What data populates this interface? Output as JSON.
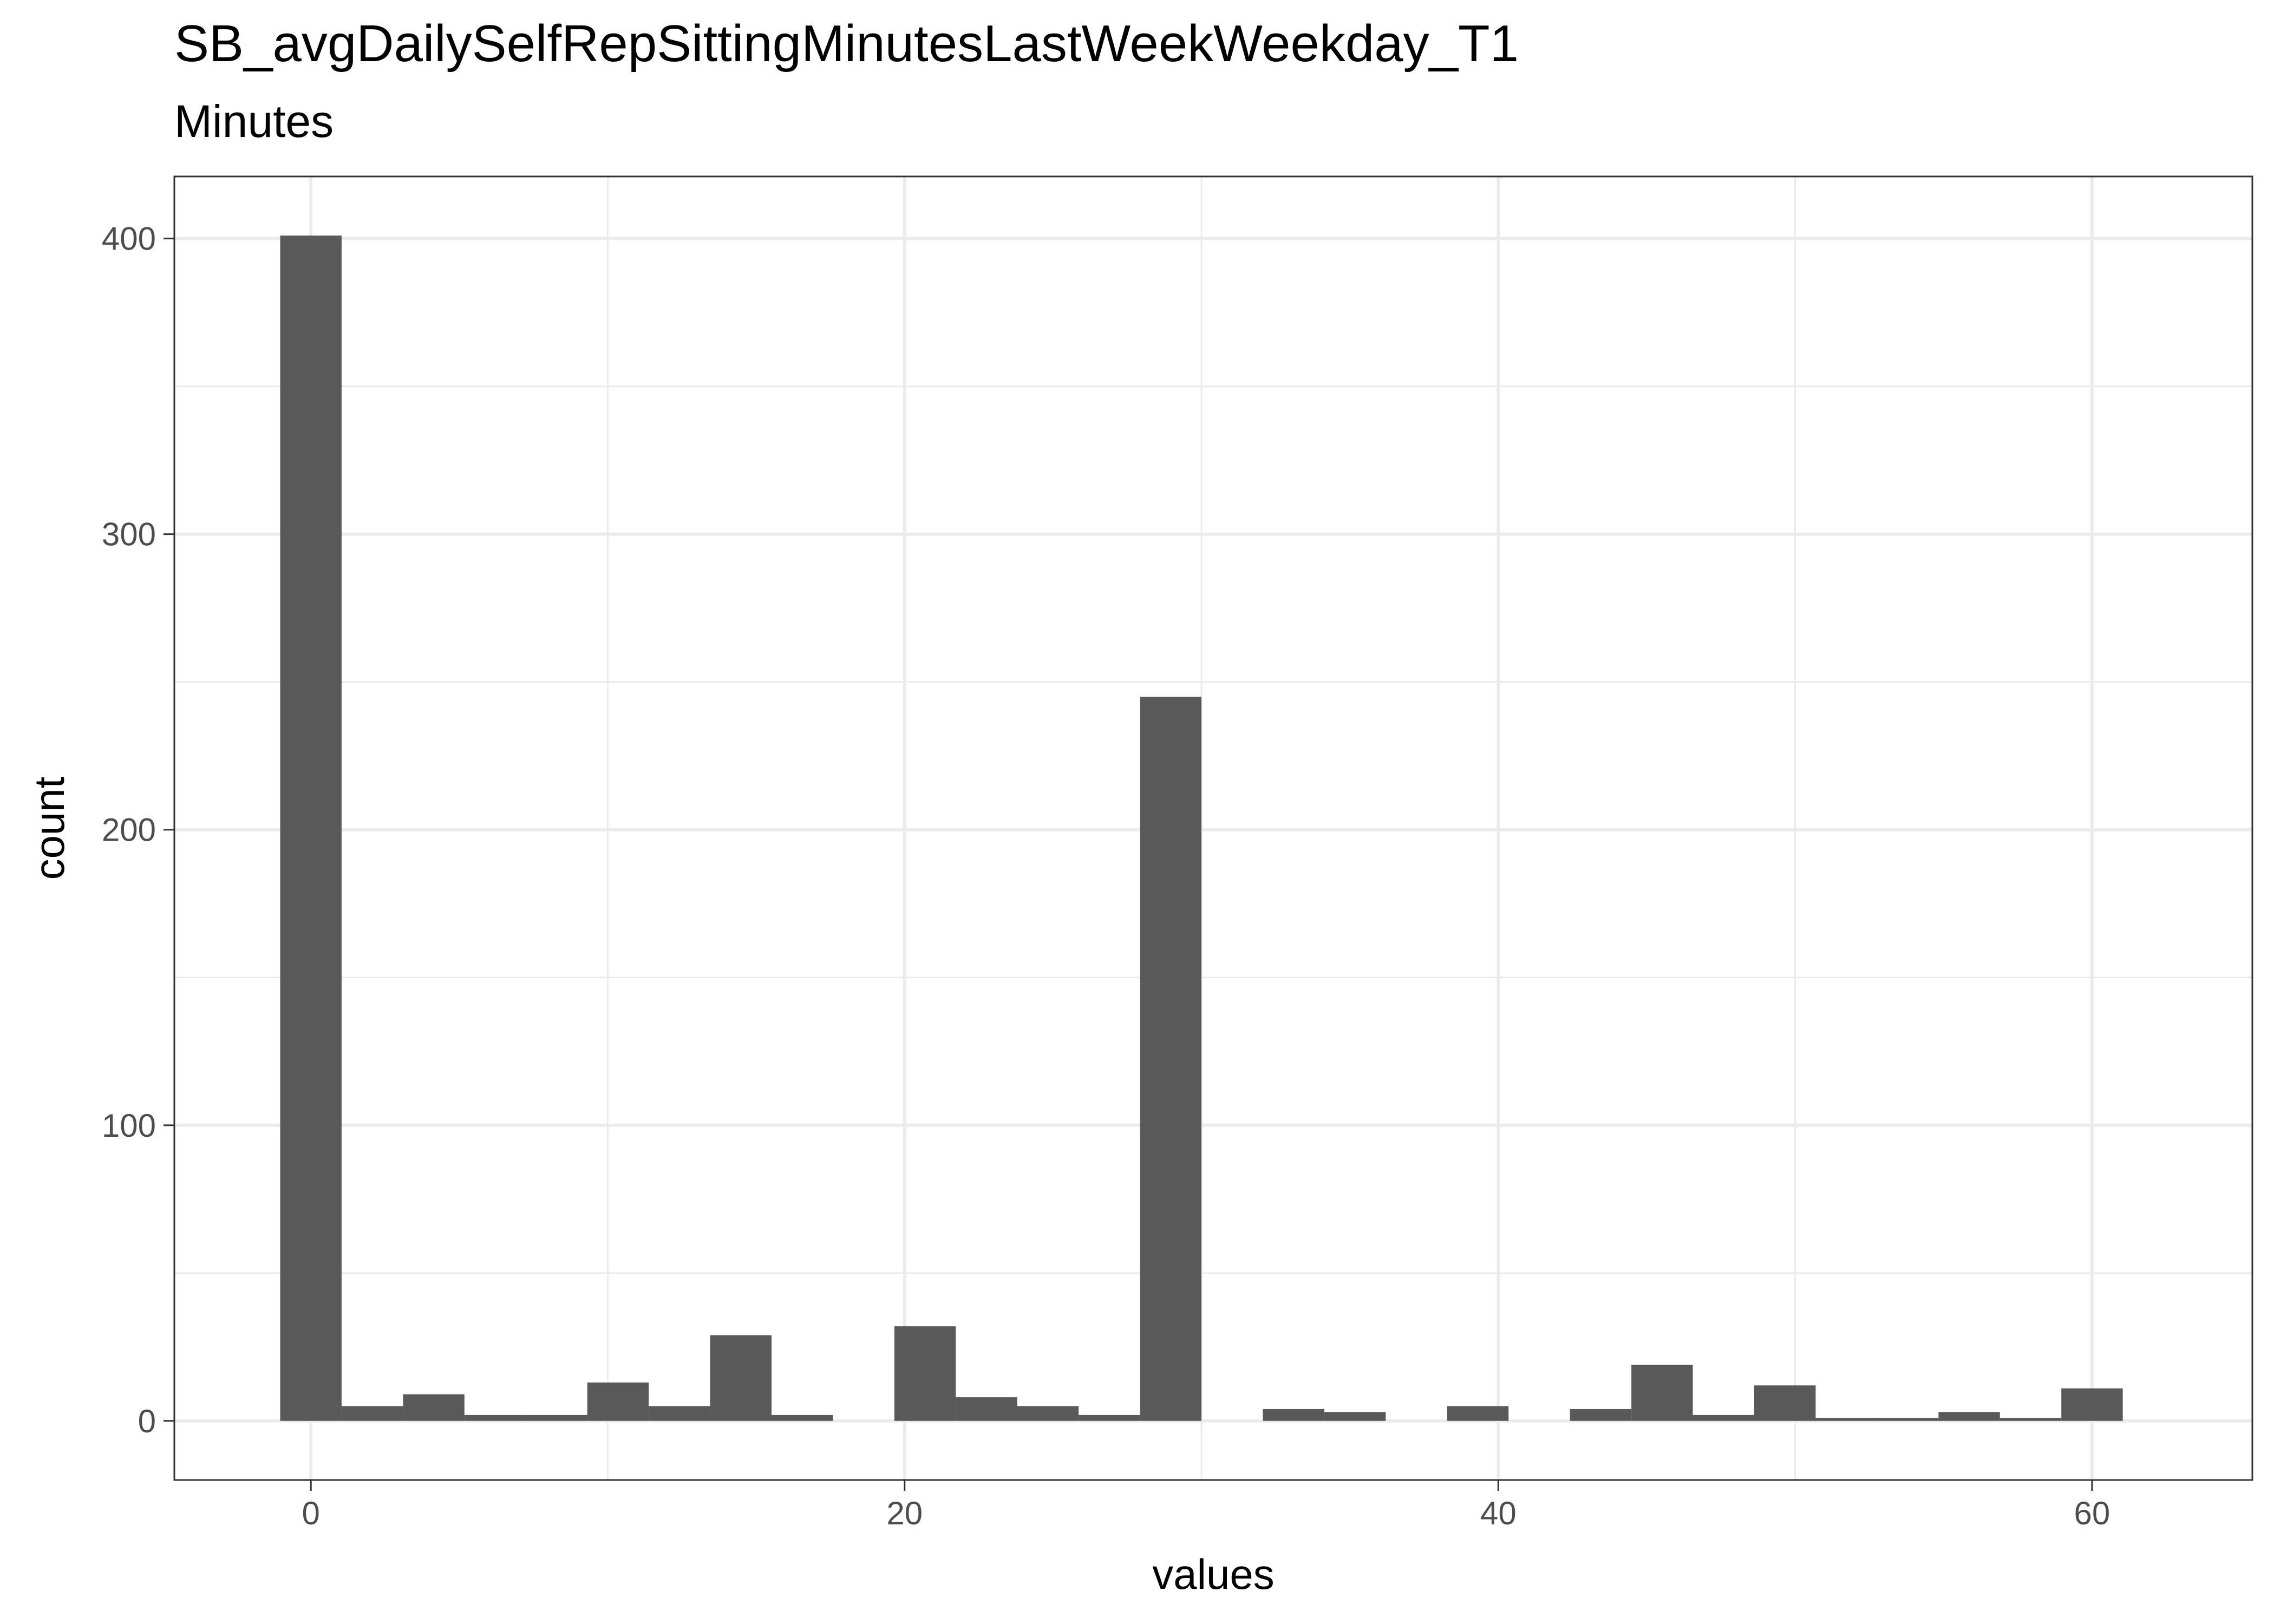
{
  "chart_data": {
    "type": "bar",
    "title": "SB_avgDailySelfRepSittingMinutesLastWeekWeekday_T1",
    "subtitle": "Minutes",
    "xlabel": "values",
    "ylabel": "count",
    "xlim": [
      -4.6,
      65.4
    ],
    "ylim": [
      -20,
      421
    ],
    "x_ticks": [
      0,
      20,
      40,
      60
    ],
    "y_ticks": [
      0,
      100,
      200,
      300,
      400
    ],
    "bin_width": 2.069,
    "bin_centers": [
      0,
      2.069,
      4.138,
      6.207,
      8.276,
      10.345,
      12.414,
      14.483,
      16.552,
      18.621,
      20.69,
      22.759,
      24.828,
      26.897,
      28.966,
      31.034,
      33.103,
      35.172,
      37.241,
      39.31,
      41.379,
      43.448,
      45.517,
      47.586,
      49.655,
      51.724,
      53.793,
      55.862,
      57.931,
      60.0
    ],
    "values": [
      401,
      5,
      9,
      2,
      2,
      13,
      5,
      29,
      2,
      0,
      32,
      8,
      5,
      2,
      245,
      0,
      4,
      3,
      0,
      5,
      0,
      4,
      19,
      2,
      12,
      1,
      1,
      3,
      1,
      11
    ],
    "bar_color": "#595959",
    "grid": true
  }
}
